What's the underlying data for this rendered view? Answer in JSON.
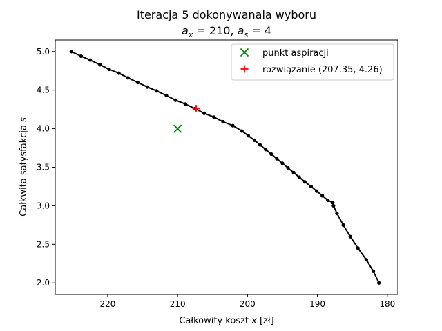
{
  "chart_data": {
    "type": "line",
    "title": "Iteracja 5 dokonywanaia wyboru",
    "subtitle": "a_x = 210, a_s = 4",
    "xlabel": "Całkowity koszt x [zł]",
    "ylabel": "Całkwita satysfakcja s",
    "xlim": [
      227.5,
      178.5
    ],
    "ylim": [
      1.85,
      5.15
    ],
    "x_inverted": true,
    "x_ticks": [
      220,
      210,
      200,
      190,
      180
    ],
    "y_ticks": [
      2.0,
      2.5,
      3.0,
      3.5,
      4.0,
      4.5,
      5.0
    ],
    "grid": false,
    "legend_position": "top-right",
    "series": [
      {
        "name": "",
        "type": "line",
        "color": "#000000",
        "marker": "dot",
        "points": [
          [
            225.2,
            5.0
          ],
          [
            223.8,
            4.94
          ],
          [
            222.5,
            4.89
          ],
          [
            221.1,
            4.83
          ],
          [
            219.8,
            4.77
          ],
          [
            218.4,
            4.72
          ],
          [
            217.1,
            4.66
          ],
          [
            215.7,
            4.6
          ],
          [
            214.3,
            4.54
          ],
          [
            213.0,
            4.49
          ],
          [
            211.6,
            4.43
          ],
          [
            210.3,
            4.37
          ],
          [
            208.9,
            4.32
          ],
          [
            207.5,
            4.26
          ],
          [
            206.2,
            4.2
          ],
          [
            204.8,
            4.15
          ],
          [
            203.5,
            4.09
          ],
          [
            202.1,
            4.04
          ],
          [
            200.8,
            3.97
          ],
          [
            199.9,
            3.91
          ],
          [
            199.0,
            3.85
          ],
          [
            198.2,
            3.79
          ],
          [
            197.4,
            3.73
          ],
          [
            196.6,
            3.67
          ],
          [
            195.8,
            3.61
          ],
          [
            195.0,
            3.55
          ],
          [
            194.2,
            3.49
          ],
          [
            193.4,
            3.43
          ],
          [
            192.6,
            3.37
          ],
          [
            191.8,
            3.31
          ],
          [
            190.9,
            3.25
          ],
          [
            190.1,
            3.19
          ],
          [
            189.3,
            3.13
          ],
          [
            188.5,
            3.07
          ],
          [
            187.8,
            3.04
          ],
          [
            187.7,
            3.0
          ],
          [
            187.2,
            2.9
          ],
          [
            186.3,
            2.75
          ],
          [
            185.3,
            2.6
          ],
          [
            184.2,
            2.45
          ],
          [
            183.0,
            2.3
          ],
          [
            182.0,
            2.15
          ],
          [
            181.2,
            2.0
          ]
        ]
      },
      {
        "name": "punkt aspiracji",
        "type": "scatter",
        "marker": "x",
        "color": "#008000",
        "points": [
          [
            210,
            4
          ]
        ]
      },
      {
        "name": "rozwiązanie (207.35, 4.26)",
        "type": "scatter",
        "marker": "+",
        "color": "#ff0000",
        "points": [
          [
            207.35,
            4.26
          ]
        ]
      }
    ]
  }
}
